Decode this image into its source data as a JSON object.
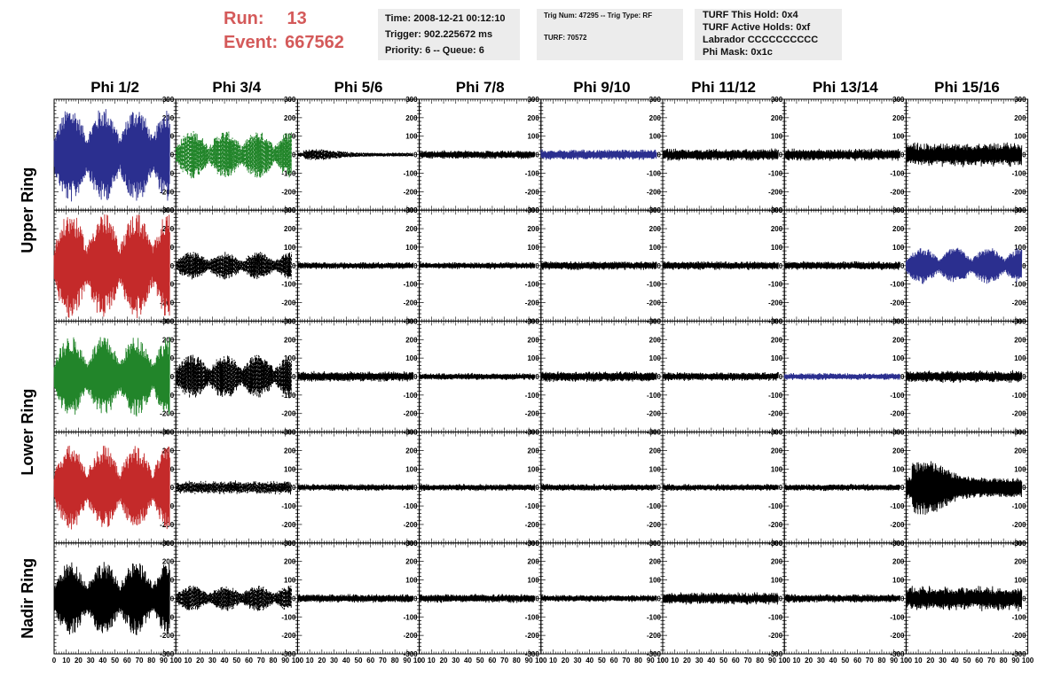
{
  "header": {
    "run_label": "Run:",
    "run_value": "13",
    "event_label": "Event:",
    "event_value": "667562",
    "time_line": "Time: 2008-12-21 00:12:10",
    "trigger_line": "Trigger: 902.225672 ms",
    "priority_line": "Priority: 6 -- Queue: 6",
    "trig_line": "Trig Num: 47295 -- Trig Type: RF",
    "turf_line": "TURF: 70572",
    "turf_hold_line": "TURF This Hold: 0x4",
    "turf_active_line": "TURF Active Holds: 0xf",
    "labrador_line": "Labrador CCCCCCCCCC",
    "phi_mask_line": "Phi Mask: 0x1c"
  },
  "colors": {
    "run_text": "#d45a5a",
    "info_box_bg": "#ececec",
    "blue": "#2b2f8f",
    "green": "#22852a",
    "red": "#c42a2a",
    "black": "#000000"
  },
  "chart_data": {
    "type": "line",
    "description_of_panels": "grid of waveform panels, 5 ring rows x 8 phi columns",
    "columns": [
      "Phi 1/2",
      "Phi 3/4",
      "Phi 5/6",
      "Phi 7/8",
      "Phi 9/10",
      "Phi 11/12",
      "Phi 13/14",
      "Phi 15/16"
    ],
    "rows": [
      "Upper Ring",
      "Upper Ring",
      "Lower Ring",
      "Lower Ring",
      "Nadir Ring"
    ],
    "row_labels": [
      {
        "label": "Upper Ring",
        "spans_rows": [
          0,
          1
        ]
      },
      {
        "label": "Lower Ring",
        "spans_rows": [
          2,
          3
        ]
      },
      {
        "label": "Nadir Ring",
        "spans_rows": [
          4
        ]
      }
    ],
    "xlim": [
      0,
      100
    ],
    "ylim": [
      -300,
      300
    ],
    "x_ticks": [
      0,
      10,
      20,
      30,
      40,
      50,
      60,
      70,
      80,
      90,
      100
    ],
    "y_ticks": [
      -300,
      -200,
      -100,
      0,
      100,
      200,
      300
    ],
    "x_data_range": [
      0,
      95
    ],
    "grid": false,
    "panels": [
      [
        {
          "amplitude": 260,
          "color": "blue",
          "style": "solid",
          "shape": "beat"
        },
        {
          "amplitude": 130,
          "color": "green",
          "style": "dashed",
          "shape": "beat"
        },
        {
          "amplitude": 30,
          "color": "black",
          "style": "dashed",
          "shape": "decay"
        },
        {
          "amplitude": 25,
          "color": "black",
          "style": "solid",
          "shape": "noise"
        },
        {
          "amplitude": 30,
          "color": "blue",
          "style": "solid",
          "shape": "noise"
        },
        {
          "amplitude": 35,
          "color": "black",
          "style": "solid",
          "shape": "noise"
        },
        {
          "amplitude": 35,
          "color": "black",
          "style": "solid",
          "shape": "noise"
        },
        {
          "amplitude": 70,
          "color": "black",
          "style": "solid",
          "shape": "noise"
        }
      ],
      [
        {
          "amplitude": 290,
          "color": "red",
          "style": "solid",
          "shape": "beat"
        },
        {
          "amplitude": 75,
          "color": "black",
          "style": "dashed",
          "shape": "beat"
        },
        {
          "amplitude": 20,
          "color": "black",
          "style": "solid",
          "shape": "noise"
        },
        {
          "amplitude": 20,
          "color": "black",
          "style": "solid",
          "shape": "noise"
        },
        {
          "amplitude": 25,
          "color": "black",
          "style": "solid",
          "shape": "noise"
        },
        {
          "amplitude": 25,
          "color": "black",
          "style": "solid",
          "shape": "noise"
        },
        {
          "amplitude": 25,
          "color": "black",
          "style": "solid",
          "shape": "noise"
        },
        {
          "amplitude": 100,
          "color": "blue",
          "style": "solid",
          "shape": "beat"
        }
      ],
      [
        {
          "amplitude": 220,
          "color": "green",
          "style": "solid",
          "shape": "beat"
        },
        {
          "amplitude": 120,
          "color": "black",
          "style": "dashed",
          "shape": "beat"
        },
        {
          "amplitude": 30,
          "color": "black",
          "style": "solid",
          "shape": "noise"
        },
        {
          "amplitude": 20,
          "color": "black",
          "style": "solid",
          "shape": "noise"
        },
        {
          "amplitude": 30,
          "color": "black",
          "style": "solid",
          "shape": "noise"
        },
        {
          "amplitude": 25,
          "color": "black",
          "style": "solid",
          "shape": "noise"
        },
        {
          "amplitude": 20,
          "color": "blue",
          "style": "solid",
          "shape": "noise"
        },
        {
          "amplitude": 35,
          "color": "black",
          "style": "solid",
          "shape": "noise"
        }
      ],
      [
        {
          "amplitude": 230,
          "color": "red",
          "style": "solid",
          "shape": "beat"
        },
        {
          "amplitude": 40,
          "color": "black",
          "style": "dashed",
          "shape": "noise"
        },
        {
          "amplitude": 20,
          "color": "black",
          "style": "solid",
          "shape": "noise"
        },
        {
          "amplitude": 20,
          "color": "black",
          "style": "solid",
          "shape": "noise"
        },
        {
          "amplitude": 20,
          "color": "black",
          "style": "solid",
          "shape": "noise"
        },
        {
          "amplitude": 20,
          "color": "black",
          "style": "solid",
          "shape": "noise"
        },
        {
          "amplitude": 20,
          "color": "black",
          "style": "solid",
          "shape": "noise"
        },
        {
          "amplitude": 150,
          "color": "black",
          "style": "solid",
          "shape": "decay"
        }
      ],
      [
        {
          "amplitude": 200,
          "color": "black",
          "style": "solid",
          "shape": "beat"
        },
        {
          "amplitude": 70,
          "color": "black",
          "style": "dashed",
          "shape": "beat"
        },
        {
          "amplitude": 25,
          "color": "black",
          "style": "solid",
          "shape": "noise"
        },
        {
          "amplitude": 25,
          "color": "black",
          "style": "solid",
          "shape": "noise"
        },
        {
          "amplitude": 20,
          "color": "black",
          "style": "solid",
          "shape": "noise"
        },
        {
          "amplitude": 35,
          "color": "black",
          "style": "solid",
          "shape": "noise"
        },
        {
          "amplitude": 25,
          "color": "black",
          "style": "solid",
          "shape": "noise"
        },
        {
          "amplitude": 70,
          "color": "black",
          "style": "solid",
          "shape": "noise"
        }
      ]
    ]
  }
}
